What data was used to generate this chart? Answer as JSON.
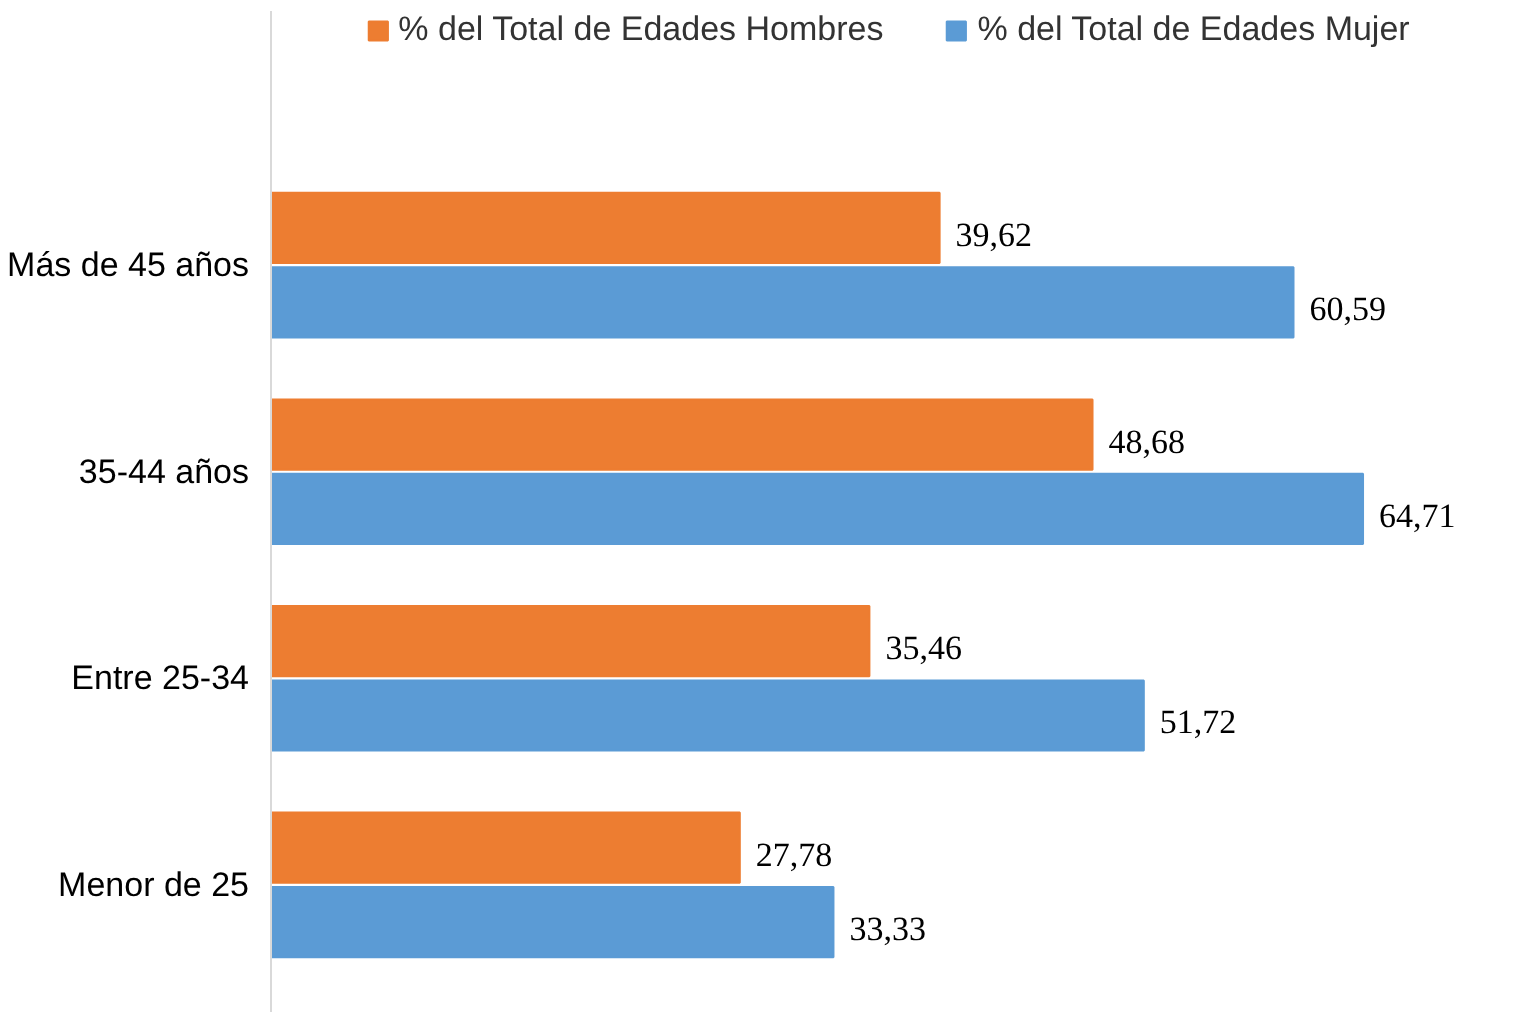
{
  "chart_data": {
    "type": "bar",
    "orientation": "horizontal",
    "categories": [
      "Más de 45 años",
      "35-44 años",
      "Entre 25-34",
      "Menor de 25"
    ],
    "series": [
      {
        "name": "% del Total de Edades Hombres",
        "color": "#ed7d31",
        "values": [
          39.62,
          48.68,
          35.46,
          27.78
        ],
        "value_labels": [
          "39,62",
          "48,68",
          "35,46",
          "27,78"
        ]
      },
      {
        "name": "% del Total de Edades Mujer",
        "color": "#5b9bd5",
        "values": [
          60.59,
          64.71,
          51.72,
          33.33
        ],
        "value_labels": [
          "60,59",
          "64,71",
          "51,72",
          "33,33"
        ]
      }
    ],
    "legend": "top",
    "grid": false
  }
}
